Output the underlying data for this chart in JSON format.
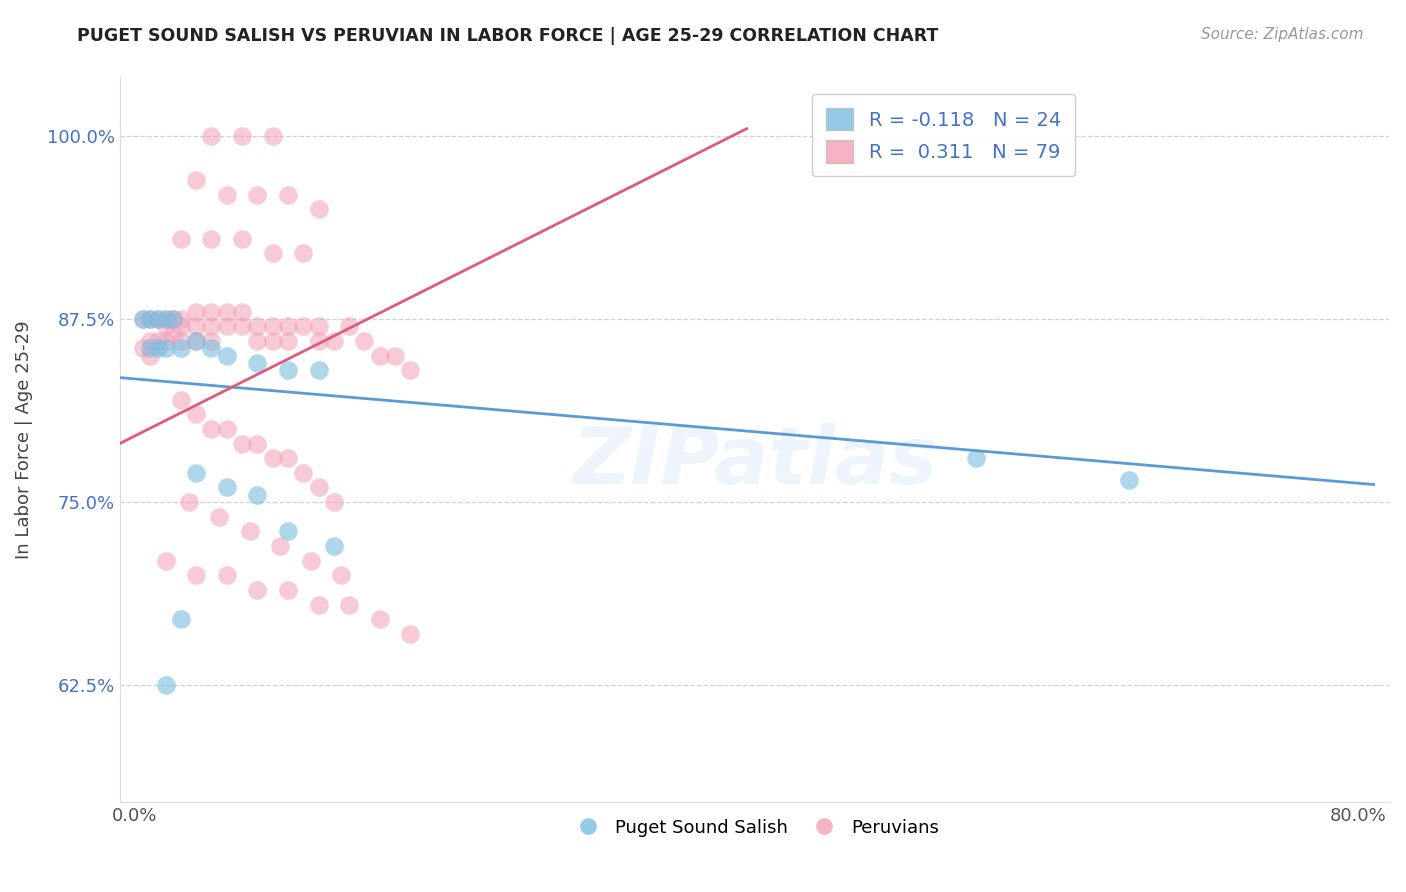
{
  "title": "PUGET SOUND SALISH VS PERUVIAN IN LABOR FORCE | AGE 25-29 CORRELATION CHART",
  "source_text": "Source: ZipAtlas.com",
  "ylabel": "In Labor Force | Age 25-29",
  "xlim": [
    -0.01,
    0.82
  ],
  "ylim": [
    0.545,
    1.04
  ],
  "xticks": [
    0.0,
    0.1,
    0.2,
    0.3,
    0.4,
    0.5,
    0.6,
    0.7,
    0.8
  ],
  "xticklabels": [
    "0.0%",
    "",
    "",
    "",
    "",
    "",
    "",
    "",
    "80.0%"
  ],
  "yticks": [
    0.625,
    0.75,
    0.875,
    1.0
  ],
  "yticklabels": [
    "62.5%",
    "75.0%",
    "87.5%",
    "100.0%"
  ],
  "blue_color": "#7bbde0",
  "pink_color": "#f4a0b5",
  "blue_line_color": "#5b9bd5",
  "pink_line_color": "#e05a7a",
  "legend_R1": "-0.118",
  "legend_N1": "24",
  "legend_R2": "0.311",
  "legend_N2": "79",
  "watermark": "ZIPatlas",
  "grid_color": "#cccccc",
  "blue_scatter_x": [
    0.005,
    0.01,
    0.015,
    0.02,
    0.025,
    0.01,
    0.015,
    0.02,
    0.03,
    0.04,
    0.05,
    0.06,
    0.08,
    0.1,
    0.12,
    0.04,
    0.06,
    0.08,
    0.1,
    0.13,
    0.02,
    0.55,
    0.65,
    0.03
  ],
  "blue_scatter_y": [
    0.875,
    0.875,
    0.875,
    0.875,
    0.875,
    0.855,
    0.855,
    0.855,
    0.855,
    0.86,
    0.855,
    0.85,
    0.845,
    0.84,
    0.84,
    0.77,
    0.76,
    0.755,
    0.73,
    0.72,
    0.625,
    0.78,
    0.765,
    0.67
  ],
  "pink_scatter_x": [
    0.005,
    0.005,
    0.01,
    0.01,
    0.01,
    0.015,
    0.015,
    0.02,
    0.02,
    0.02,
    0.025,
    0.025,
    0.03,
    0.03,
    0.03,
    0.04,
    0.04,
    0.04,
    0.05,
    0.05,
    0.05,
    0.06,
    0.06,
    0.07,
    0.07,
    0.08,
    0.08,
    0.09,
    0.09,
    0.1,
    0.1,
    0.11,
    0.12,
    0.12,
    0.13,
    0.14,
    0.15,
    0.16,
    0.17,
    0.18,
    0.05,
    0.07,
    0.09,
    0.04,
    0.06,
    0.08,
    0.1,
    0.12,
    0.03,
    0.05,
    0.07,
    0.09,
    0.11,
    0.03,
    0.04,
    0.05,
    0.06,
    0.07,
    0.08,
    0.09,
    0.1,
    0.11,
    0.12,
    0.13,
    0.035,
    0.055,
    0.075,
    0.095,
    0.115,
    0.135,
    0.02,
    0.04,
    0.06,
    0.08,
    0.1,
    0.12,
    0.14,
    0.16,
    0.18
  ],
  "pink_scatter_y": [
    0.875,
    0.855,
    0.875,
    0.86,
    0.85,
    0.875,
    0.86,
    0.875,
    0.87,
    0.86,
    0.875,
    0.865,
    0.875,
    0.87,
    0.86,
    0.88,
    0.87,
    0.86,
    0.88,
    0.87,
    0.86,
    0.88,
    0.87,
    0.88,
    0.87,
    0.87,
    0.86,
    0.87,
    0.86,
    0.87,
    0.86,
    0.87,
    0.87,
    0.86,
    0.86,
    0.87,
    0.86,
    0.85,
    0.85,
    0.84,
    1.0,
    1.0,
    1.0,
    0.97,
    0.96,
    0.96,
    0.96,
    0.95,
    0.93,
    0.93,
    0.93,
    0.92,
    0.92,
    0.82,
    0.81,
    0.8,
    0.8,
    0.79,
    0.79,
    0.78,
    0.78,
    0.77,
    0.76,
    0.75,
    0.75,
    0.74,
    0.73,
    0.72,
    0.71,
    0.7,
    0.71,
    0.7,
    0.7,
    0.69,
    0.69,
    0.68,
    0.68,
    0.67,
    0.66
  ],
  "blue_line_x0": -0.01,
  "blue_line_x1": 0.81,
  "blue_line_y0": 0.835,
  "blue_line_y1": 0.762,
  "pink_line_x0": -0.01,
  "pink_line_x1": 0.4,
  "pink_line_y0": 0.79,
  "pink_line_y1": 1.005
}
